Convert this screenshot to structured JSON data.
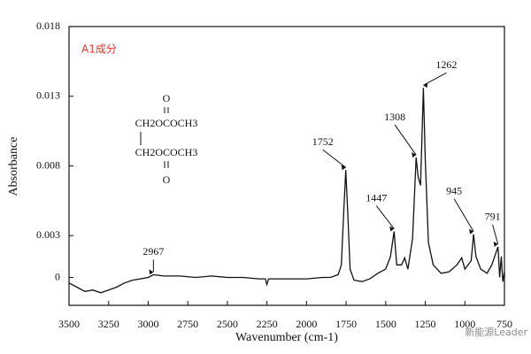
{
  "chart_data": {
    "type": "line",
    "note_label": "A1成分",
    "structure": [
      "O",
      "CH2OCOCH3",
      "CH2OCOCH3",
      "O"
    ],
    "x_label": "Wavenumber (cm-1)",
    "y_label": "Absorbance",
    "watermark": "新能源Leader",
    "xlim": [
      3500,
      750
    ],
    "xticks": [
      3500,
      3250,
      3000,
      2750,
      2500,
      2250,
      2000,
      1750,
      1500,
      1250,
      1000,
      750
    ],
    "ylim": [
      -0.002,
      0.018
    ],
    "yticks": [
      0,
      0.003,
      0.008,
      0.013,
      0.018
    ],
    "series": [
      {
        "color": "#111111",
        "x": [
          3500,
          3450,
          3400,
          3350,
          3300,
          3250,
          3200,
          3150,
          3100,
          3050,
          3000,
          2967,
          2900,
          2800,
          2700,
          2600,
          2500,
          2400,
          2300,
          2260,
          2250,
          2240,
          2200,
          2100,
          2000,
          1900,
          1850,
          1800,
          1780,
          1765,
          1752,
          1740,
          1725,
          1700,
          1650,
          1600,
          1550,
          1500,
          1470,
          1447,
          1430,
          1400,
          1380,
          1360,
          1330,
          1308,
          1295,
          1280,
          1262,
          1250,
          1230,
          1200,
          1150,
          1100,
          1050,
          1020,
          1000,
          960,
          945,
          930,
          900,
          860,
          830,
          800,
          791,
          780,
          770,
          760,
          750
        ],
        "values": [
          -0.0004,
          -0.0007,
          -0.001,
          -0.0009,
          -0.0011,
          -0.0009,
          -0.0007,
          -0.0004,
          -0.0002,
          -0.0001,
          0.0,
          0.0002,
          0.0001,
          0.0001,
          0.0,
          0.0001,
          0.0,
          0.0,
          -0.0001,
          -0.0001,
          -0.0005,
          -0.0001,
          -0.0001,
          -0.0001,
          -0.0001,
          0.0,
          0.0,
          0.0002,
          0.0009,
          0.0047,
          0.0077,
          0.0047,
          0.0006,
          -0.0002,
          -0.0003,
          -0.0001,
          0.0003,
          0.0006,
          0.0015,
          0.0033,
          0.0009,
          0.0009,
          0.0014,
          0.0006,
          0.0028,
          0.0086,
          0.0072,
          0.0066,
          0.0136,
          0.0085,
          0.0025,
          0.0009,
          0.0003,
          0.0004,
          0.0009,
          0.0014,
          0.0006,
          0.0012,
          0.0031,
          0.0015,
          0.0006,
          0.0003,
          0.0009,
          0.0019,
          0.0022,
          0.0,
          0.0015,
          -0.0003,
          0.0004
        ]
      }
    ],
    "annotations": [
      {
        "label": "2967",
        "x": 2967,
        "y": 0.0002
      },
      {
        "label": "1752",
        "x": 1752,
        "y": 0.0077
      },
      {
        "label": "1447",
        "x": 1447,
        "y": 0.0033
      },
      {
        "label": "1308",
        "x": 1308,
        "y": 0.0086
      },
      {
        "label": "1262",
        "x": 1262,
        "y": 0.0136
      },
      {
        "label": "945",
        "x": 945,
        "y": 0.0031
      },
      {
        "label": "791",
        "x": 791,
        "y": 0.0022
      }
    ]
  }
}
